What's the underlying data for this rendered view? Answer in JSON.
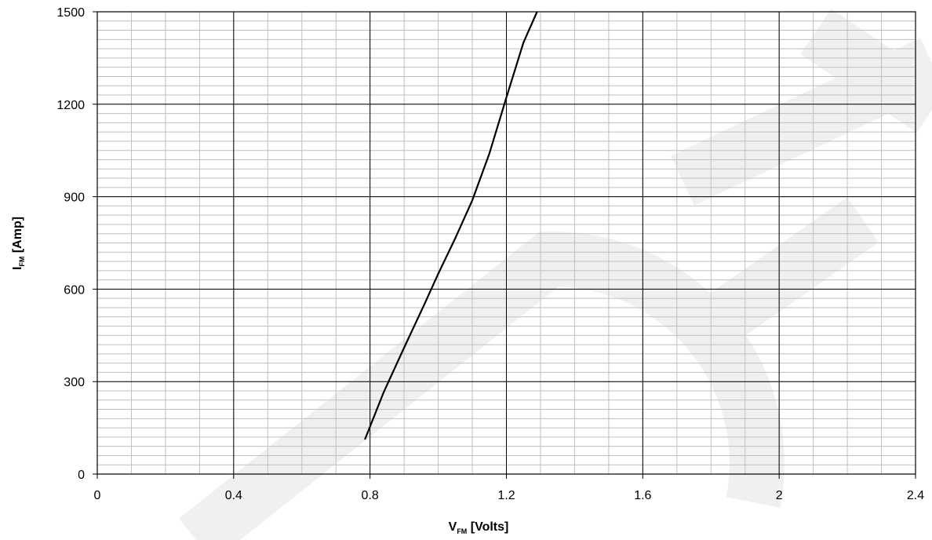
{
  "chart_data": {
    "type": "line",
    "xlabel": {
      "main": "V",
      "sub": "FM",
      "rest": " [Volts]"
    },
    "ylabel": {
      "main": "I",
      "sub": "FM",
      "rest": "  [Amp]"
    },
    "xlim": [
      0,
      2.4
    ],
    "ylim": [
      0,
      1500
    ],
    "x_ticks": [
      0,
      0.4,
      0.8,
      1.2,
      1.6,
      2,
      2.4
    ],
    "x_tick_labels": [
      "0",
      "0.4",
      "0.8",
      "1.2",
      "1.6",
      "2",
      "2.4"
    ],
    "y_ticks": [
      0,
      300,
      600,
      900,
      1200,
      1500
    ],
    "y_tick_labels": [
      "0",
      "300",
      "600",
      "900",
      "1200",
      "1500"
    ],
    "minor_x_step": 0.1,
    "minor_y_step": 30,
    "grid": true,
    "series": [
      {
        "color": "#000000",
        "x": [
          0.785,
          0.84,
          0.9,
          0.96,
          1.0,
          1.05,
          1.1,
          1.15,
          1.2,
          1.25,
          1.29
        ],
        "y": [
          112,
          265,
          410,
          552,
          650,
          765,
          888,
          1040,
          1222,
          1400,
          1500
        ]
      }
    ]
  }
}
